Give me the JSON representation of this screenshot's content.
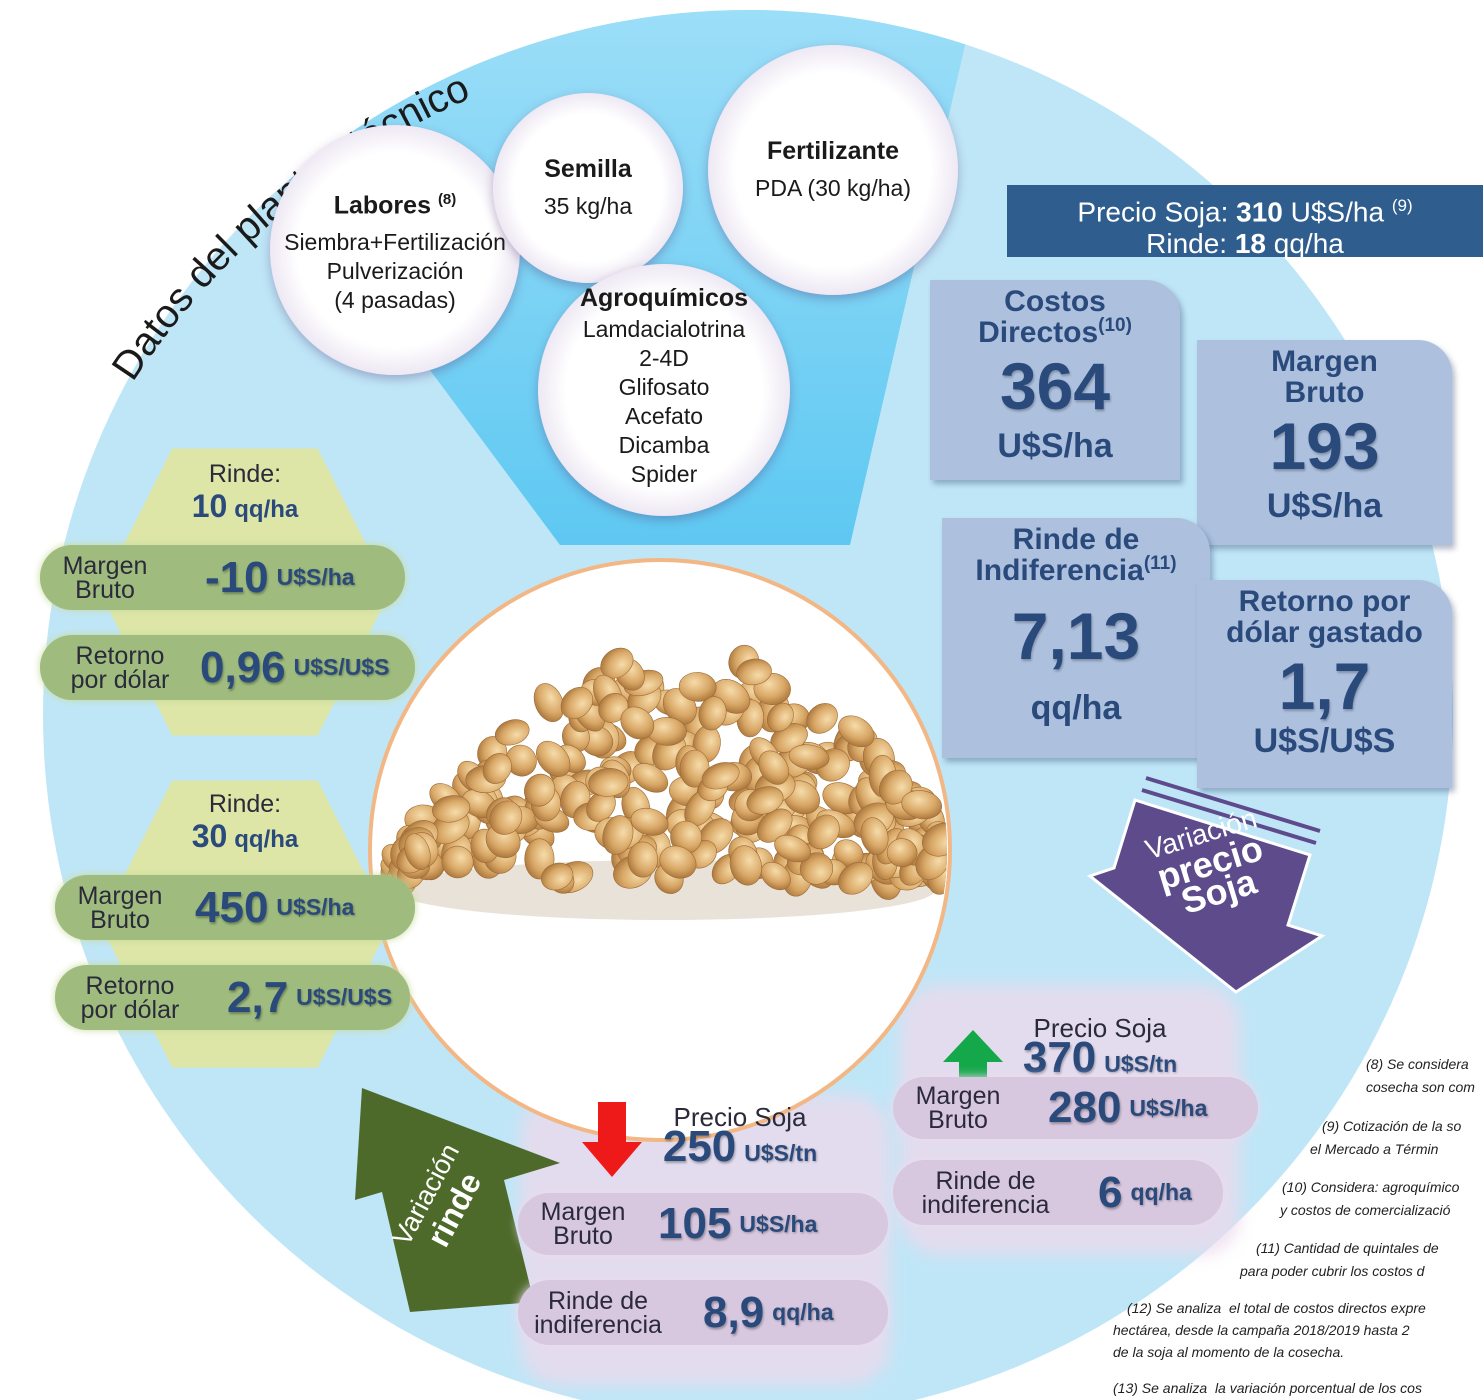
{
  "title": "Datos del planteo técnico",
  "inputs": {
    "labores": {
      "label": "Labores",
      "note": "(8)",
      "lines": [
        "Siembra+Fertilización",
        "Pulverización",
        "(4 pasadas)"
      ]
    },
    "semilla": {
      "label": "Semilla",
      "lines": [
        "35 kg/ha"
      ]
    },
    "fertilizante": {
      "label": "Fertilizante",
      "lines": [
        "PDA (30 kg/ha)"
      ]
    },
    "agroquimicos": {
      "label": "Agroquímicos",
      "lines": [
        "Lamdacialotrina",
        "2-4D",
        "Glifosato",
        "Acefato",
        "Dicamba",
        "Spider"
      ]
    }
  },
  "banner": {
    "price_label": "Precio Soja:",
    "price": "310",
    "price_unit": "U$S/ha",
    "price_note": "(9)",
    "yield_label": "Rinde:",
    "yield": "18",
    "yield_unit": "qq/ha"
  },
  "results": [
    {
      "label_lines": [
        "Costos",
        "Directos"
      ],
      "note": "(10)",
      "value": "364",
      "unit": "U$S/ha"
    },
    {
      "label_lines": [
        "Margen",
        "Bruto"
      ],
      "value": "193",
      "unit": "U$S/ha"
    },
    {
      "label_lines": [
        "Rinde de",
        "Indiferencia"
      ],
      "note": "(11)",
      "value": "7,13",
      "unit": "qq/ha"
    },
    {
      "label_lines": [
        "Retorno por",
        "dólar gastado"
      ],
      "value": "1,7",
      "unit": "U$S/U$S"
    }
  ],
  "yield_scenarios": [
    {
      "rinde_label": "Rinde:",
      "rinde": "10",
      "rinde_unit": "qq/ha",
      "margin_label_lines": [
        "Margen",
        "Bruto"
      ],
      "margin": "-10",
      "margin_unit": "U$S/ha",
      "return_label_lines": [
        "Retorno",
        "por dólar"
      ],
      "return": "0,96",
      "return_unit": "U$S/U$S"
    },
    {
      "rinde_label": "Rinde:",
      "rinde": "30",
      "rinde_unit": "qq/ha",
      "margin_label_lines": [
        "Margen",
        "Bruto"
      ],
      "margin": "450",
      "margin_unit": "U$S/ha",
      "return_label_lines": [
        "Retorno",
        "por dólar"
      ],
      "return": "2,7",
      "return_unit": "U$S/U$S"
    }
  ],
  "arrows": {
    "price": [
      "Variación",
      "precio",
      "Soja"
    ],
    "yield": [
      "Variación",
      "rinde"
    ]
  },
  "price_scenarios": [
    {
      "price_label": "Precio Soja",
      "price": "370",
      "price_unit": "U$S/tn",
      "margin_label_lines": [
        "Margen",
        "Bruto"
      ],
      "margin": "280",
      "margin_unit": "U$S/ha",
      "breakeven_label_lines": [
        "Rinde de",
        "indiferencia"
      ],
      "breakeven": "6",
      "breakeven_unit": "qq/ha"
    },
    {
      "price_label": "Precio Soja",
      "price": "250",
      "price_unit": "U$S/tn",
      "margin_label_lines": [
        "Margen",
        "Bruto"
      ],
      "margin": "105",
      "margin_unit": "U$S/ha",
      "breakeven_label_lines": [
        "Rinde de",
        "indiferencia"
      ],
      "breakeven": "8,9",
      "breakeven_unit": "qq/ha"
    }
  ],
  "footnotes": [
    "(8) Se considera",
    "cosecha son com",
    "(9) Cotización de la so",
    "el Mercado a Términ",
    "(10) Considera: agroquímico",
    "y costos de comercializació",
    "(11) Cantidad de quintales de",
    "para poder cubrir los costos d",
    "(12) Se analiza  el total de costos directos expre",
    "hectárea, desde la campaña 2018/2019 hasta 2",
    "de la soja al momento de la cosecha.",
    "(13) Se analiza  la variación porcentual de los cos"
  ]
}
